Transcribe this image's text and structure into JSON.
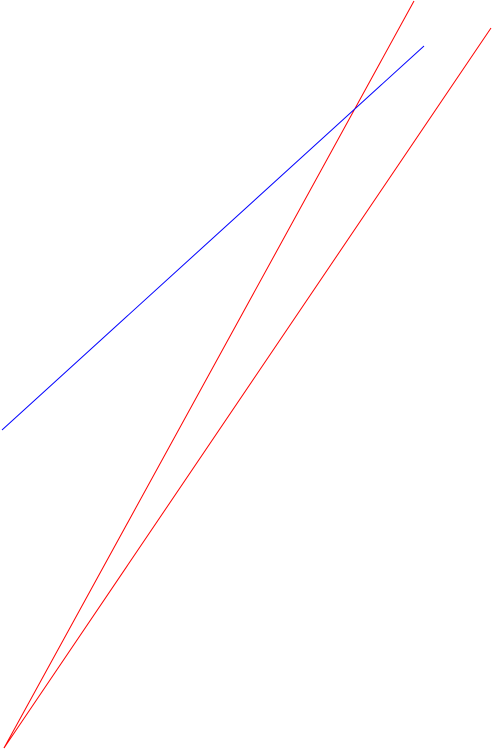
{
  "diagram": {
    "colors": {
      "background": "#ffffff",
      "red": "#ff0000",
      "blue": "#0000ff"
    },
    "lines": [
      {
        "id": "red-line-steep",
        "color": "#ff0000"
      },
      {
        "id": "red-line-shallow",
        "color": "#ff0000"
      },
      {
        "id": "blue-line",
        "color": "#0000ff"
      }
    ]
  }
}
